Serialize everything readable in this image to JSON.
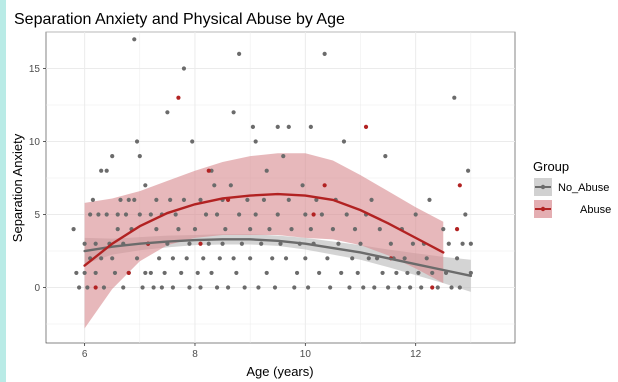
{
  "colors": {
    "page_border": "#b9ebe6",
    "panel_background": "#ffffff",
    "grid": "#ebebeb",
    "no_abuse": "#6b6b6b",
    "abuse": "#b22222",
    "abuse_ribbon": "#d98c92",
    "no_abuse_ribbon": "#bdbdbd"
  },
  "chart_data": {
    "type": "scatter",
    "title": "Separation Anxiety and Physical Abuse by Age",
    "xlabel": "Age (years)",
    "ylabel": "Separation Anxiety",
    "xlim": [
      5.3,
      13.8
    ],
    "ylim": [
      -3.8,
      17.5
    ],
    "x_ticks": [
      6,
      8,
      10,
      12
    ],
    "y_ticks": [
      0,
      5,
      10,
      15
    ],
    "grid": true,
    "legend": {
      "title": "Group",
      "placement": "right",
      "entries": [
        "No_Abuse",
        "Abuse"
      ]
    },
    "series": [
      {
        "name": "No_Abuse",
        "color": "#6b6b6b",
        "points": [
          [
            5.8,
            4
          ],
          [
            5.85,
            1
          ],
          [
            5.9,
            0
          ],
          [
            6.0,
            3
          ],
          [
            6.0,
            1
          ],
          [
            6.05,
            0
          ],
          [
            6.1,
            5
          ],
          [
            6.1,
            2
          ],
          [
            6.15,
            6
          ],
          [
            6.2,
            1
          ],
          [
            6.2,
            3
          ],
          [
            6.25,
            5
          ],
          [
            6.3,
            2
          ],
          [
            6.3,
            8
          ],
          [
            6.35,
            0
          ],
          [
            6.4,
            8
          ],
          [
            6.4,
            5
          ],
          [
            6.45,
            3
          ],
          [
            6.5,
            9
          ],
          [
            6.5,
            2
          ],
          [
            6.55,
            1
          ],
          [
            6.6,
            5
          ],
          [
            6.6,
            4
          ],
          [
            6.65,
            6
          ],
          [
            6.7,
            0
          ],
          [
            6.7,
            3
          ],
          [
            6.75,
            5
          ],
          [
            6.8,
            6
          ],
          [
            6.8,
            1
          ],
          [
            6.85,
            4
          ],
          [
            6.9,
            17
          ],
          [
            6.9,
            6
          ],
          [
            6.95,
            10
          ],
          [
            6.95,
            2
          ],
          [
            7.0,
            9
          ],
          [
            7.0,
            5
          ],
          [
            7.05,
            0
          ],
          [
            7.1,
            1
          ],
          [
            7.1,
            7
          ],
          [
            7.15,
            3
          ],
          [
            7.2,
            5
          ],
          [
            7.2,
            1
          ],
          [
            7.25,
            0
          ],
          [
            7.3,
            6
          ],
          [
            7.3,
            4
          ],
          [
            7.35,
            2
          ],
          [
            7.4,
            5
          ],
          [
            7.4,
            0
          ],
          [
            7.45,
            1
          ],
          [
            7.5,
            12
          ],
          [
            7.5,
            3
          ],
          [
            7.55,
            6
          ],
          [
            7.6,
            0
          ],
          [
            7.6,
            2
          ],
          [
            7.65,
            5
          ],
          [
            7.7,
            4
          ],
          [
            7.75,
            1
          ],
          [
            7.8,
            15
          ],
          [
            7.8,
            6
          ],
          [
            7.85,
            2
          ],
          [
            7.9,
            0
          ],
          [
            7.9,
            3
          ],
          [
            7.95,
            10
          ],
          [
            8.0,
            4
          ],
          [
            8.05,
            1
          ],
          [
            8.1,
            0
          ],
          [
            8.1,
            6
          ],
          [
            8.15,
            2
          ],
          [
            8.2,
            5
          ],
          [
            8.25,
            3
          ],
          [
            8.3,
            8
          ],
          [
            8.3,
            1
          ],
          [
            8.35,
            7
          ],
          [
            8.4,
            5
          ],
          [
            8.4,
            0
          ],
          [
            8.45,
            2
          ],
          [
            8.5,
            6
          ],
          [
            8.5,
            3
          ],
          [
            8.55,
            4
          ],
          [
            8.6,
            0
          ],
          [
            8.65,
            7
          ],
          [
            8.7,
            12
          ],
          [
            8.7,
            2
          ],
          [
            8.75,
            1
          ],
          [
            8.8,
            16
          ],
          [
            8.8,
            5
          ],
          [
            8.85,
            3
          ],
          [
            8.9,
            0
          ],
          [
            8.95,
            6
          ],
          [
            9.0,
            2
          ],
          [
            9.0,
            4
          ],
          [
            9.05,
            11
          ],
          [
            9.1,
            10
          ],
          [
            9.1,
            5
          ],
          [
            9.15,
            0
          ],
          [
            9.2,
            3
          ],
          [
            9.25,
            6
          ],
          [
            9.3,
            1
          ],
          [
            9.3,
            8
          ],
          [
            9.35,
            4
          ],
          [
            9.4,
            2
          ],
          [
            9.45,
            0
          ],
          [
            9.5,
            11
          ],
          [
            9.5,
            5
          ],
          [
            9.55,
            3
          ],
          [
            9.6,
            9
          ],
          [
            9.65,
            2
          ],
          [
            9.7,
            6
          ],
          [
            9.7,
            11
          ],
          [
            9.75,
            4
          ],
          [
            9.8,
            0
          ],
          [
            9.85,
            1
          ],
          [
            9.9,
            3
          ],
          [
            9.95,
            7
          ],
          [
            10.0,
            5
          ],
          [
            10.0,
            2
          ],
          [
            10.05,
            0
          ],
          [
            10.1,
            11
          ],
          [
            10.1,
            4
          ],
          [
            10.15,
            3
          ],
          [
            10.2,
            6
          ],
          [
            10.25,
            1
          ],
          [
            10.3,
            5
          ],
          [
            10.35,
            16
          ],
          [
            10.4,
            2
          ],
          [
            10.45,
            0
          ],
          [
            10.5,
            4
          ],
          [
            10.55,
            6
          ],
          [
            10.6,
            3
          ],
          [
            10.65,
            1
          ],
          [
            10.7,
            10
          ],
          [
            10.75,
            5
          ],
          [
            10.8,
            0
          ],
          [
            10.85,
            2
          ],
          [
            10.9,
            4
          ],
          [
            10.95,
            1
          ],
          [
            11.0,
            3
          ],
          [
            11.05,
            0
          ],
          [
            11.1,
            5
          ],
          [
            11.15,
            2
          ],
          [
            11.2,
            6
          ],
          [
            11.25,
            0
          ],
          [
            11.3,
            2
          ],
          [
            11.35,
            4
          ],
          [
            11.4,
            1
          ],
          [
            11.45,
            9
          ],
          [
            11.5,
            0
          ],
          [
            11.55,
            3
          ],
          [
            11.6,
            2
          ],
          [
            11.65,
            1
          ],
          [
            11.7,
            0
          ],
          [
            11.75,
            4
          ],
          [
            11.8,
            2
          ],
          [
            11.85,
            1
          ],
          [
            11.9,
            0
          ],
          [
            11.95,
            3
          ],
          [
            12.0,
            5
          ],
          [
            12.05,
            1
          ],
          [
            12.1,
            0
          ],
          [
            12.15,
            3
          ],
          [
            12.2,
            2
          ],
          [
            12.25,
            6
          ],
          [
            12.3,
            1
          ],
          [
            12.4,
            0
          ],
          [
            12.5,
            4
          ],
          [
            12.55,
            1
          ],
          [
            12.6,
            3
          ],
          [
            12.65,
            0
          ],
          [
            12.7,
            13
          ],
          [
            12.75,
            2
          ],
          [
            12.8,
            0
          ],
          [
            12.85,
            3
          ],
          [
            12.9,
            5
          ],
          [
            12.95,
            8
          ],
          [
            13.0,
            3
          ],
          [
            13.0,
            1
          ]
        ],
        "trend": [
          [
            6.0,
            2.5
          ],
          [
            6.5,
            2.8
          ],
          [
            7.0,
            3.0
          ],
          [
            7.5,
            3.15
          ],
          [
            8.0,
            3.25
          ],
          [
            8.5,
            3.3
          ],
          [
            9.0,
            3.3
          ],
          [
            9.5,
            3.2
          ],
          [
            10.0,
            3.0
          ],
          [
            10.5,
            2.7
          ],
          [
            11.0,
            2.4
          ],
          [
            11.5,
            2.0
          ],
          [
            12.0,
            1.6
          ],
          [
            12.5,
            1.2
          ],
          [
            13.0,
            0.8
          ]
        ],
        "ribbon_upper": [
          [
            6.0,
            3.4
          ],
          [
            6.5,
            3.35
          ],
          [
            7.0,
            3.45
          ],
          [
            7.5,
            3.55
          ],
          [
            8.0,
            3.6
          ],
          [
            8.5,
            3.65
          ],
          [
            9.0,
            3.65
          ],
          [
            9.5,
            3.55
          ],
          [
            10.0,
            3.4
          ],
          [
            10.5,
            3.15
          ],
          [
            11.0,
            2.9
          ],
          [
            11.5,
            2.6
          ],
          [
            12.0,
            2.35
          ],
          [
            12.5,
            2.1
          ],
          [
            13.0,
            1.9
          ]
        ],
        "ribbon_lower": [
          [
            6.0,
            1.6
          ],
          [
            6.5,
            2.25
          ],
          [
            7.0,
            2.55
          ],
          [
            7.5,
            2.75
          ],
          [
            8.0,
            2.9
          ],
          [
            8.5,
            2.95
          ],
          [
            9.0,
            2.95
          ],
          [
            9.5,
            2.85
          ],
          [
            10.0,
            2.6
          ],
          [
            10.5,
            2.25
          ],
          [
            11.0,
            1.9
          ],
          [
            11.5,
            1.4
          ],
          [
            12.0,
            0.85
          ],
          [
            12.5,
            0.3
          ],
          [
            13.0,
            -0.3
          ]
        ]
      },
      {
        "name": "Abuse",
        "color": "#b22222",
        "points": [
          [
            6.2,
            0
          ],
          [
            6.8,
            1
          ],
          [
            7.15,
            3
          ],
          [
            7.7,
            13
          ],
          [
            8.1,
            3
          ],
          [
            8.25,
            8
          ],
          [
            8.6,
            6
          ],
          [
            10.15,
            5
          ],
          [
            10.35,
            7
          ],
          [
            11.1,
            11
          ],
          [
            11.55,
            2
          ],
          [
            12.3,
            0
          ],
          [
            12.75,
            4
          ],
          [
            12.8,
            7
          ]
        ],
        "trend": [
          [
            6.0,
            1.5
          ],
          [
            6.5,
            3.0
          ],
          [
            7.0,
            4.2
          ],
          [
            7.5,
            5.1
          ],
          [
            8.0,
            5.7
          ],
          [
            8.5,
            6.1
          ],
          [
            9.0,
            6.3
          ],
          [
            9.5,
            6.4
          ],
          [
            10.0,
            6.3
          ],
          [
            10.5,
            6.0
          ],
          [
            11.0,
            5.3
          ],
          [
            11.5,
            4.4
          ],
          [
            12.0,
            3.4
          ],
          [
            12.5,
            2.4
          ]
        ],
        "ribbon_upper": [
          [
            6.0,
            5.8
          ],
          [
            6.5,
            6.1
          ],
          [
            7.0,
            6.6
          ],
          [
            7.5,
            7.3
          ],
          [
            8.0,
            8.0
          ],
          [
            8.5,
            8.6
          ],
          [
            9.0,
            9.0
          ],
          [
            9.5,
            9.2
          ],
          [
            10.0,
            9.2
          ],
          [
            10.5,
            8.7
          ],
          [
            11.0,
            7.7
          ],
          [
            11.5,
            6.6
          ],
          [
            12.0,
            5.5
          ],
          [
            12.5,
            4.5
          ]
        ],
        "ribbon_lower": [
          [
            6.0,
            -2.8
          ],
          [
            6.5,
            -0.1
          ],
          [
            7.0,
            1.8
          ],
          [
            7.5,
            2.9
          ],
          [
            8.0,
            3.4
          ],
          [
            8.5,
            3.6
          ],
          [
            9.0,
            3.6
          ],
          [
            9.5,
            3.6
          ],
          [
            10.0,
            3.4
          ],
          [
            10.5,
            3.3
          ],
          [
            11.0,
            2.9
          ],
          [
            11.5,
            2.2
          ],
          [
            12.0,
            1.3
          ],
          [
            12.5,
            0.3
          ]
        ]
      }
    ]
  }
}
